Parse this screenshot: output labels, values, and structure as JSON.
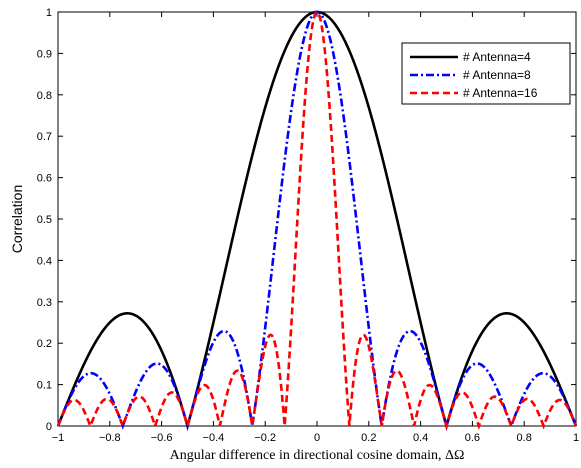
{
  "chart_data": {
    "type": "line",
    "xlabel": "Angular difference in directional cosine domain, ΔΩ",
    "ylabel": "Correlation",
    "xlim": [
      -1,
      1
    ],
    "ylim": [
      0,
      1
    ],
    "x_ticks": [
      "−1",
      "−0.8",
      "−0.6",
      "−0.4",
      "−0.2",
      "0",
      "0.2",
      "0.4",
      "0.6",
      "0.8",
      "1"
    ],
    "y_ticks": [
      "0",
      "0.1",
      "0.2",
      "0.3",
      "0.4",
      "0.5",
      "0.6",
      "0.7",
      "0.8",
      "0.9",
      "1"
    ],
    "grid": false,
    "legend_position": "top-right",
    "function": "|sin(pi*N*x/2) / (N*sin(pi*x/2))|",
    "series": [
      {
        "name": "# Antenna=4",
        "antennas": 4,
        "color": "#000000",
        "style": "solid"
      },
      {
        "name": "# Antenna=8",
        "antennas": 8,
        "color": "#0000ff",
        "style": "dash-dot"
      },
      {
        "name": "# Antenna=16",
        "antennas": 16,
        "color": "#ff0000",
        "style": "dashed"
      }
    ]
  }
}
